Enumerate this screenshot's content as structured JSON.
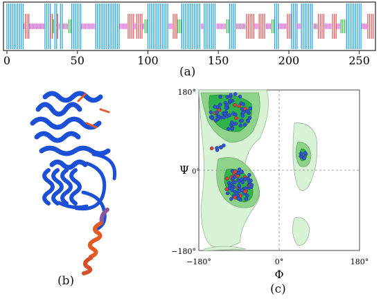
{
  "figure": {
    "panel_a": {
      "label": "(a)",
      "ticks": [
        "0",
        "50",
        "100",
        "150",
        "200",
        "250"
      ],
      "colors": {
        "helix": "#2aa7e0",
        "coil": "#e040e0",
        "strand": "#e8585a",
        "turn": "#3dbf4a"
      }
    },
    "panel_b": {
      "label": "(b)",
      "colors": {
        "high": "#1a4fd6",
        "mid": "#8a5a9e",
        "low": "#e25a24"
      }
    },
    "panel_c": {
      "label": "(c)",
      "y_ticks": {
        "top": "180°",
        "mid": "0°",
        "bottom": "−180°"
      },
      "x_ticks": {
        "left": "−180°",
        "mid": "0°",
        "right": "180°"
      },
      "x_axis_label": "Φ",
      "y_axis_label": "Ψ",
      "colors": {
        "allowed": "#d8f2d6",
        "favored": "#8fd38a",
        "core": "#2fb34a",
        "point_blue": "#2f55c8",
        "point_red": "#d9452c"
      }
    }
  }
}
